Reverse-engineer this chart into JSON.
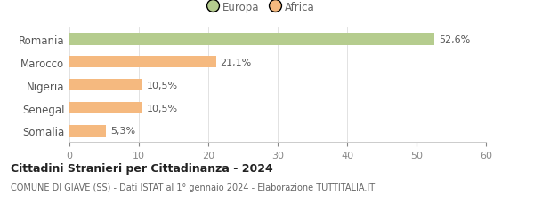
{
  "categories": [
    "Romania",
    "Marocco",
    "Nigeria",
    "Senegal",
    "Somalia"
  ],
  "values": [
    52.6,
    21.1,
    10.5,
    10.5,
    5.3
  ],
  "labels": [
    "52,6%",
    "21,1%",
    "10,5%",
    "10,5%",
    "5,3%"
  ],
  "colors": [
    "#b5cc8e",
    "#f5b97f",
    "#f5b97f",
    "#f5b97f",
    "#f5b97f"
  ],
  "legend_items": [
    {
      "label": "Europa",
      "color": "#b5cc8e"
    },
    {
      "label": "Africa",
      "color": "#f5b97f"
    }
  ],
  "xlim": [
    0,
    60
  ],
  "xticks": [
    0,
    10,
    20,
    30,
    40,
    50,
    60
  ],
  "title_bold": "Cittadini Stranieri per Cittadinanza - 2024",
  "subtitle": "COMUNE DI GIAVE (SS) - Dati ISTAT al 1° gennaio 2024 - Elaborazione TUTTITALIA.IT",
  "background_color": "#ffffff",
  "bar_height": 0.52
}
